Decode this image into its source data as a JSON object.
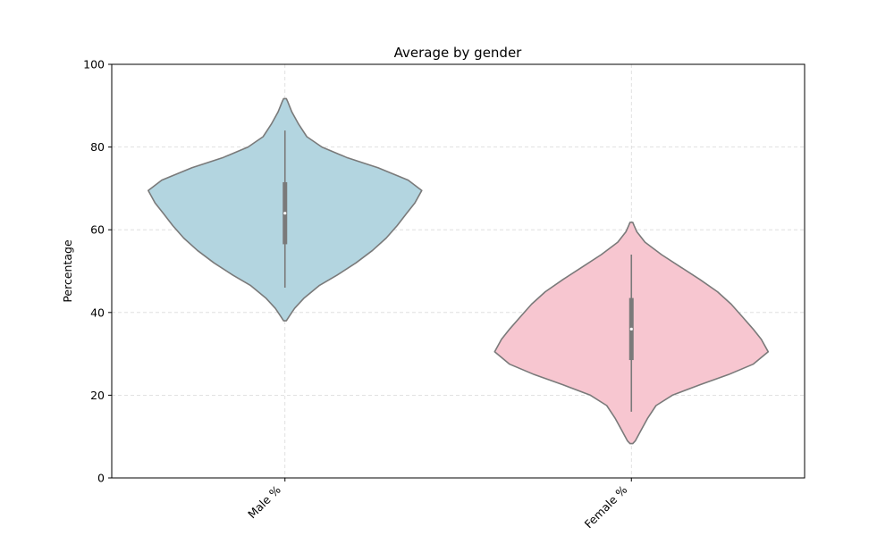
{
  "chart_data": {
    "type": "violin",
    "title": "Average by gender",
    "xlabel": "",
    "ylabel": "Percentage",
    "ylim": [
      0,
      100
    ],
    "yticks": [
      0,
      20,
      40,
      60,
      80,
      100
    ],
    "grid": true,
    "categories": [
      "Male %",
      "Female %"
    ],
    "series": [
      {
        "category": "Male %",
        "color": "#b3d5e0",
        "edge_color": "#7a7a7a",
        "range": [
          38,
          92
        ],
        "whisker": [
          46,
          84
        ],
        "quartiles": [
          56.5,
          71.5
        ],
        "median": 64,
        "density": [
          {
            "y": 38.0,
            "w": 0.01
          },
          {
            "y": 39.0,
            "w": 0.03
          },
          {
            "y": 41.0,
            "w": 0.07
          },
          {
            "y": 43.5,
            "w": 0.14
          },
          {
            "y": 46.5,
            "w": 0.25
          },
          {
            "y": 49.0,
            "w": 0.38
          },
          {
            "y": 52.0,
            "w": 0.52
          },
          {
            "y": 55.0,
            "w": 0.64
          },
          {
            "y": 58.0,
            "w": 0.74
          },
          {
            "y": 61.0,
            "w": 0.82
          },
          {
            "y": 64.0,
            "w": 0.89
          },
          {
            "y": 66.5,
            "w": 0.95
          },
          {
            "y": 69.5,
            "w": 1.0
          },
          {
            "y": 72.0,
            "w": 0.9
          },
          {
            "y": 75.0,
            "w": 0.68
          },
          {
            "y": 77.5,
            "w": 0.45
          },
          {
            "y": 80.0,
            "w": 0.27
          },
          {
            "y": 82.5,
            "w": 0.16
          },
          {
            "y": 85.5,
            "w": 0.1
          },
          {
            "y": 88.5,
            "w": 0.05
          },
          {
            "y": 91.0,
            "w": 0.02
          },
          {
            "y": 91.7,
            "w": 0.01
          }
        ]
      },
      {
        "category": "Female %",
        "color": "#f7c6d0",
        "edge_color": "#7a7a7a",
        "range": [
          8,
          62
        ],
        "whisker": [
          16,
          54
        ],
        "quartiles": [
          28.5,
          43.5
        ],
        "median": 36,
        "density": [
          {
            "y": 8.3,
            "w": 0.01
          },
          {
            "y": 9.0,
            "w": 0.03
          },
          {
            "y": 11.5,
            "w": 0.07
          },
          {
            "y": 14.5,
            "w": 0.12
          },
          {
            "y": 17.5,
            "w": 0.18
          },
          {
            "y": 20.0,
            "w": 0.3
          },
          {
            "y": 22.5,
            "w": 0.5
          },
          {
            "y": 25.0,
            "w": 0.71
          },
          {
            "y": 27.5,
            "w": 0.89
          },
          {
            "y": 30.5,
            "w": 1.0
          },
          {
            "y": 33.5,
            "w": 0.95
          },
          {
            "y": 36.0,
            "w": 0.89
          },
          {
            "y": 39.0,
            "w": 0.81
          },
          {
            "y": 42.0,
            "w": 0.73
          },
          {
            "y": 45.0,
            "w": 0.63
          },
          {
            "y": 48.0,
            "w": 0.5
          },
          {
            "y": 51.0,
            "w": 0.36
          },
          {
            "y": 54.0,
            "w": 0.22
          },
          {
            "y": 57.0,
            "w": 0.1
          },
          {
            "y": 59.5,
            "w": 0.04
          },
          {
            "y": 61.0,
            "w": 0.02
          },
          {
            "y": 61.8,
            "w": 0.01
          }
        ]
      }
    ]
  }
}
